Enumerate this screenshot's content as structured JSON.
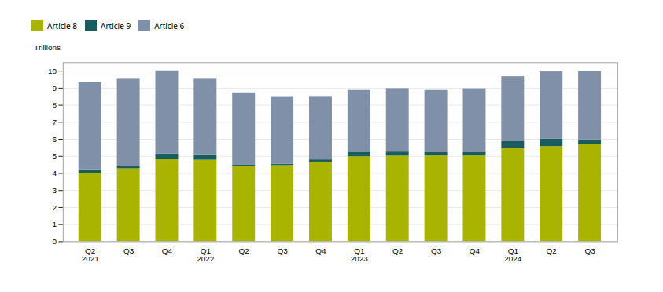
{
  "chart_data": {
    "type": "bar",
    "stacked": true,
    "ylabel": "Trillions",
    "categories": [
      "Q2\n2021",
      "Q3",
      "Q4",
      "Q1\n2022",
      "Q2",
      "Q3",
      "Q4",
      "Q1\n2023",
      "Q2",
      "Q3",
      "Q4",
      "Q1\n2024",
      "Q2",
      "Q3"
    ],
    "series": [
      {
        "name": "Article 8",
        "color": "#a8b400",
        "values": [
          4.02,
          4.28,
          4.82,
          4.78,
          4.42,
          4.47,
          4.67,
          4.98,
          5.02,
          5.03,
          5.03,
          5.48,
          5.58,
          5.72
        ]
      },
      {
        "name": "Article 9",
        "color": "#1a5c5e",
        "values": [
          0.2,
          0.13,
          0.32,
          0.32,
          0.09,
          0.07,
          0.13,
          0.27,
          0.24,
          0.22,
          0.22,
          0.4,
          0.43,
          0.25
        ]
      },
      {
        "name": "Article 6",
        "color": "#8090a8",
        "values": [
          5.1,
          5.12,
          4.88,
          4.43,
          4.22,
          3.97,
          3.72,
          3.62,
          3.72,
          3.62,
          3.72,
          3.8,
          3.95,
          4.03
        ]
      }
    ],
    "ylim": [
      0,
      10.5
    ],
    "yticks": [
      0,
      1,
      2,
      3,
      4,
      5,
      6,
      7,
      8,
      9,
      10
    ],
    "grid": true,
    "legend": "upper left"
  }
}
